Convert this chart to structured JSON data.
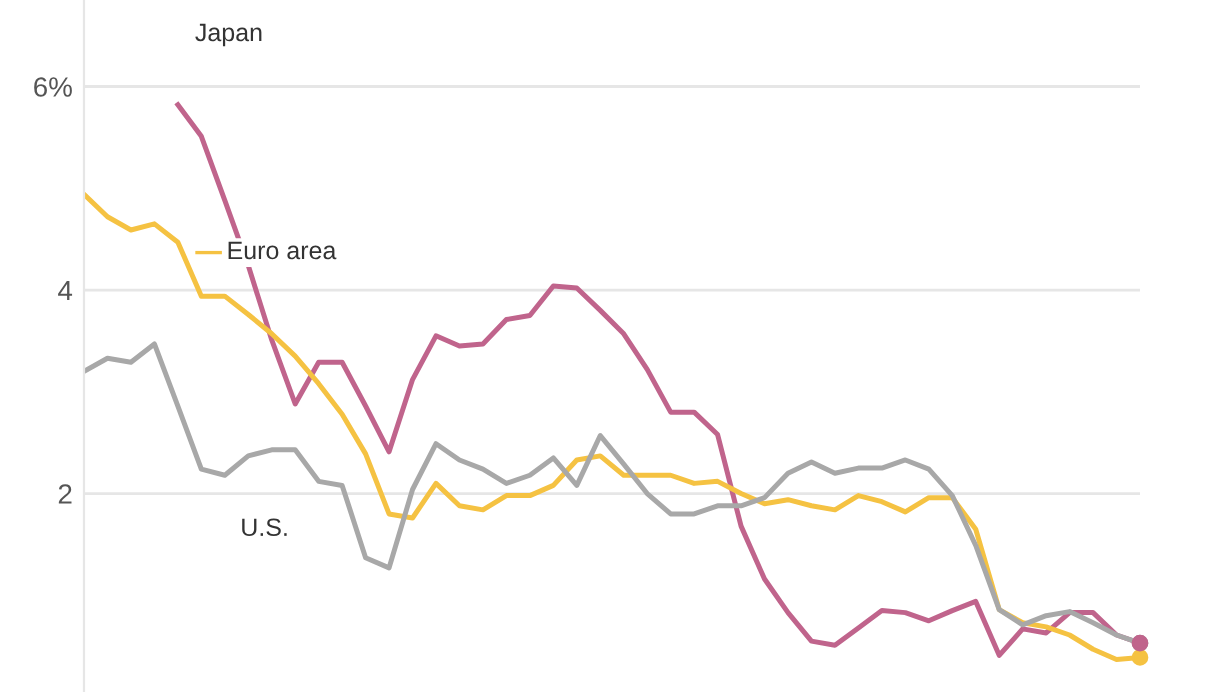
{
  "chart_data": {
    "type": "line",
    "categories": [
      null,
      null,
      null,
      null,
      null,
      null,
      null,
      null,
      null,
      null,
      null,
      null,
      null,
      null,
      null,
      null,
      null,
      null,
      null,
      null,
      null,
      null,
      null,
      null,
      null,
      null,
      null,
      null,
      null,
      null,
      null,
      null,
      null,
      null,
      null,
      null,
      null,
      null,
      null,
      null,
      null,
      null,
      null,
      null,
      null,
      null
    ],
    "series": [
      {
        "name": "Japan",
        "color": "#c0648c",
        "values": [
          null,
          null,
          null,
          null,
          5.82,
          5.51,
          4.88,
          4.24,
          3.51,
          2.88,
          3.29,
          3.29,
          2.86,
          2.41,
          3.12,
          3.55,
          3.45,
          3.47,
          3.71,
          3.75,
          4.04,
          4.02,
          3.8,
          3.57,
          3.22,
          2.8,
          2.8,
          2.58,
          1.68,
          1.16,
          0.83,
          0.55,
          0.51,
          0.68,
          0.85,
          0.83,
          0.75,
          0.85,
          0.94,
          0.41,
          0.67,
          0.63,
          0.83,
          0.83,
          0.61,
          0.53
        ]
      },
      {
        "name": "Euro area",
        "color": "#f5c242",
        "values": [
          4.94,
          4.72,
          4.59,
          4.65,
          4.47,
          3.94,
          3.94,
          3.76,
          3.57,
          3.35,
          3.08,
          2.78,
          2.39,
          1.8,
          1.76,
          2.1,
          1.88,
          1.84,
          1.98,
          1.98,
          2.08,
          2.33,
          2.37,
          2.18,
          2.18,
          2.18,
          2.1,
          2.12,
          2.0,
          1.9,
          1.94,
          1.88,
          1.84,
          1.98,
          1.92,
          1.82,
          1.96,
          1.96,
          1.65,
          0.86,
          0.73,
          0.69,
          0.61,
          0.47,
          0.37,
          0.39
        ]
      },
      {
        "name": "U.S.",
        "color": "#a8a8a8",
        "values": [
          3.2,
          3.33,
          3.29,
          3.47,
          2.86,
          2.24,
          2.18,
          2.37,
          2.43,
          2.43,
          2.12,
          2.08,
          1.37,
          1.27,
          2.04,
          2.49,
          2.33,
          2.24,
          2.1,
          2.18,
          2.35,
          2.08,
          2.57,
          2.29,
          2.0,
          1.8,
          1.8,
          1.88,
          1.88,
          1.96,
          2.2,
          2.31,
          2.2,
          2.25,
          2.25,
          2.33,
          2.24,
          1.98,
          1.49,
          0.86,
          0.71,
          0.8,
          0.84,
          0.73,
          0.61,
          0.53
        ]
      }
    ],
    "ylim": [
      0.05,
      6.85
    ],
    "yticks": [
      {
        "value": 6,
        "label": "6%"
      },
      4,
      2
    ],
    "grid": "y",
    "line_style": "solid"
  }
}
